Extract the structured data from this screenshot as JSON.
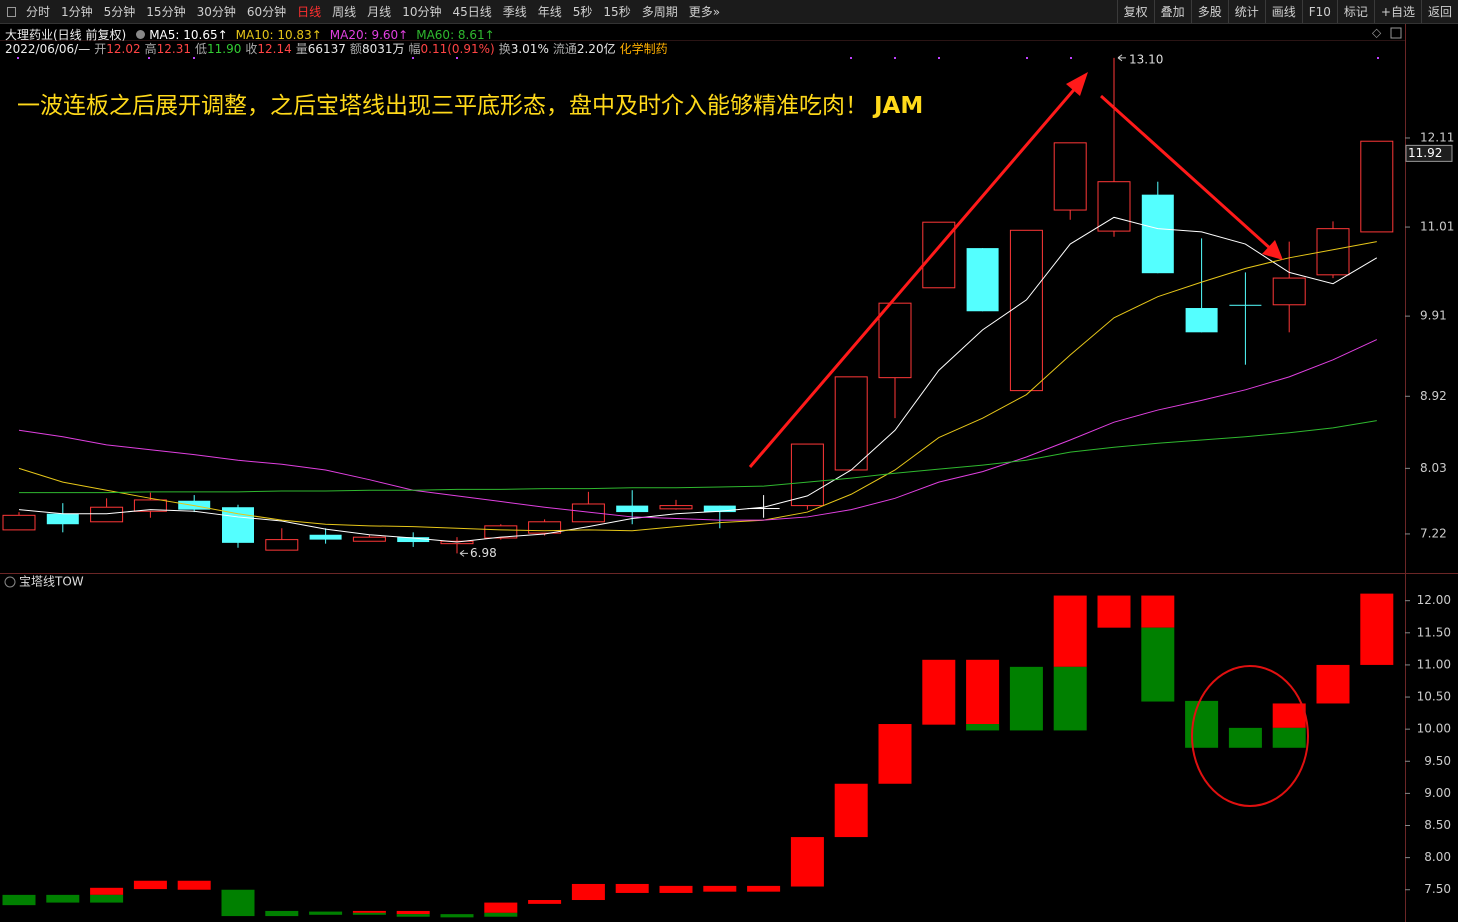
{
  "toolbar": {
    "left": [
      "分时",
      "1分钟",
      "5分钟",
      "15分钟",
      "30分钟",
      "60分钟",
      "日线",
      "周线",
      "月线",
      "10分钟",
      "45日线",
      "季线",
      "年线",
      "5秒",
      "15秒",
      "多周期",
      "更多»"
    ],
    "selected": "日线",
    "right": [
      "复权",
      "叠加",
      "多股",
      "统计",
      "画线",
      "F10",
      "标记",
      "+自选",
      "返回"
    ]
  },
  "info": {
    "stock": "大理药业(日线 前复权)",
    "ma": [
      "MA5: 10.65↑",
      "MA10: 10.83↑",
      "MA20: 9.60↑",
      "MA60: 8.61↑"
    ],
    "date": "2022/06/06/—",
    "quote": [
      {
        "label": "开",
        "value": "12.02",
        "color": "#ff4444"
      },
      {
        "label": "高",
        "value": "12.31",
        "color": "#ff4444"
      },
      {
        "label": "低",
        "value": "11.90",
        "color": "#33cc33"
      },
      {
        "label": "收",
        "value": "12.14",
        "color": "#ff4444"
      },
      {
        "label": "量",
        "value": "66137",
        "color": "#e8e8e8"
      },
      {
        "label": "额",
        "value": "8031万",
        "color": "#e8e8e8"
      },
      {
        "label": "幅",
        "value": "0.11(0.91%)",
        "color": "#ff4444"
      },
      {
        "label": "换",
        "value": "3.01%",
        "color": "#e8e8e8"
      },
      {
        "label": "流通",
        "value": "2.20亿",
        "color": "#e8e8e8"
      }
    ],
    "industry": "化学制药"
  },
  "annotation": {
    "text": "一波连板之后展开调整，之后宝塔线出现三平底形态，盘中及时介入能够精准吃肉！",
    "tag": "JAM"
  },
  "chart_data": [
    {
      "type": "candlestick",
      "ylim": [
        6.75,
        13.32
      ],
      "yticks": [
        7.22,
        8.03,
        8.92,
        9.91,
        11.01,
        12.11
      ],
      "grid": false,
      "up_color": "#ff3838",
      "down_color": "#54ffff",
      "flat_color": "#ffffff",
      "last_price": 11.92,
      "high_label": {
        "value": 13.1,
        "label": "13.10"
      },
      "low_label": 6.98,
      "candles": {
        "open": [
          7.27,
          7.47,
          7.37,
          7.5,
          7.63,
          7.55,
          7.02,
          7.21,
          7.13,
          7.18,
          7.1,
          7.17,
          7.23,
          7.37,
          7.57,
          7.53,
          7.57,
          7.54,
          7.57,
          8.01,
          9.15,
          10.26,
          10.75,
          8.99,
          11.22,
          10.96,
          11.41,
          10.01,
          10.05,
          10.05,
          10.42,
          10.95
        ],
        "high": [
          7.49,
          7.6,
          7.66,
          7.73,
          7.7,
          7.58,
          7.29,
          7.29,
          7.21,
          7.24,
          7.18,
          7.34,
          7.4,
          7.74,
          7.76,
          7.64,
          7.57,
          7.7,
          8.33,
          9.16,
          10.07,
          11.07,
          10.75,
          10.97,
          12.05,
          13.1,
          11.57,
          10.87,
          10.45,
          10.83,
          11.08,
          12.07
        ],
        "low": [
          7.27,
          7.24,
          7.37,
          7.42,
          7.49,
          7.05,
          7.02,
          7.1,
          7.13,
          7.06,
          6.98,
          7.15,
          7.2,
          7.37,
          7.34,
          7.52,
          7.29,
          7.42,
          7.52,
          8.01,
          8.65,
          10.26,
          9.97,
          8.99,
          11.1,
          10.89,
          10.44,
          9.71,
          9.31,
          9.71,
          10.38,
          10.95
        ],
        "close": [
          7.45,
          7.34,
          7.55,
          7.64,
          7.52,
          7.11,
          7.15,
          7.15,
          7.18,
          7.12,
          7.13,
          7.32,
          7.37,
          7.59,
          7.49,
          7.57,
          7.49,
          7.54,
          8.33,
          9.16,
          10.07,
          11.07,
          9.97,
          10.97,
          12.05,
          11.57,
          10.44,
          9.71,
          10.04,
          10.38,
          10.99,
          12.07
        ]
      },
      "series": [
        {
          "color": "#ffffff",
          "values": [
            7.52,
            7.47,
            7.47,
            7.52,
            7.5,
            7.43,
            7.38,
            7.28,
            7.21,
            7.17,
            7.12,
            7.18,
            7.22,
            7.31,
            7.41,
            7.47,
            7.5,
            7.55,
            7.69,
            8.01,
            8.5,
            9.24,
            9.74,
            10.11,
            10.8,
            11.13,
            10.99,
            10.95,
            10.8,
            10.45,
            10.31,
            10.63
          ]
        },
        {
          "color": "#e6c619",
          "values": [
            8.03,
            7.86,
            7.76,
            7.66,
            7.57,
            7.47,
            7.39,
            7.34,
            7.32,
            7.31,
            7.29,
            7.27,
            7.26,
            7.27,
            7.26,
            7.31,
            7.36,
            7.39,
            7.49,
            7.71,
            8.01,
            8.41,
            8.65,
            8.94,
            9.43,
            9.89,
            10.15,
            10.33,
            10.5,
            10.63,
            10.73,
            10.83
          ]
        },
        {
          "color": "#e040e0",
          "values": [
            8.5,
            8.42,
            8.32,
            8.26,
            8.2,
            8.13,
            8.08,
            8.01,
            7.89,
            7.76,
            7.69,
            7.62,
            7.55,
            7.49,
            7.43,
            7.41,
            7.39,
            7.39,
            7.43,
            7.52,
            7.66,
            7.86,
            7.99,
            8.17,
            8.38,
            8.6,
            8.75,
            8.87,
            9.0,
            9.16,
            9.37,
            9.62
          ]
        },
        {
          "color": "#2fb82f",
          "values": [
            7.73,
            7.73,
            7.73,
            7.74,
            7.74,
            7.74,
            7.75,
            7.75,
            7.76,
            7.76,
            7.77,
            7.77,
            7.78,
            7.78,
            7.79,
            7.79,
            7.8,
            7.81,
            7.86,
            7.91,
            7.97,
            8.02,
            8.07,
            8.13,
            8.23,
            8.29,
            8.34,
            8.38,
            8.42,
            8.47,
            8.53,
            8.62
          ]
        }
      ]
    },
    {
      "type": "tower",
      "title": "宝塔线TOW",
      "ylim": [
        7.06,
        12.4
      ],
      "yticks": [
        {
          "value": 7.5,
          "label": "7.50"
        },
        {
          "value": 8,
          "label": "8.00"
        },
        {
          "value": 8.5,
          "label": "8.50"
        },
        {
          "value": 9,
          "label": "9.00"
        },
        {
          "value": 9.5,
          "label": "9.50"
        },
        {
          "value": 10,
          "label": "10.00"
        },
        {
          "value": 10.5,
          "label": "10.50"
        },
        {
          "value": 11,
          "label": "11.00"
        },
        {
          "value": 11.5,
          "label": "11.50"
        },
        {
          "value": 12,
          "label": "12.00"
        }
      ],
      "grid": false,
      "up": {
        "color": "#ff0000",
        "low": [
          null,
          null,
          7.42,
          7.51,
          7.5,
          null,
          null,
          null,
          7.14,
          7.12,
          null,
          7.14,
          7.28,
          7.34,
          7.45,
          7.45,
          7.47,
          7.47,
          7.55,
          8.32,
          9.15,
          10.07,
          10.08,
          null,
          10.97,
          11.58,
          11.58,
          null,
          null,
          10.02,
          10.4,
          11.0
        ],
        "high": [
          null,
          null,
          7.53,
          7.64,
          7.64,
          null,
          null,
          null,
          7.17,
          7.17,
          null,
          7.3,
          7.34,
          7.59,
          7.59,
          7.56,
          7.56,
          7.56,
          8.32,
          9.15,
          10.08,
          11.08,
          11.08,
          null,
          12.08,
          12.08,
          12.08,
          null,
          null,
          10.4,
          11.0,
          12.11
        ]
      },
      "down": {
        "color": "#008000",
        "low": [
          7.26,
          7.3,
          7.3,
          null,
          null,
          7.09,
          7.09,
          7.11,
          7.11,
          7.08,
          7.07,
          7.08,
          null,
          null,
          null,
          null,
          null,
          null,
          null,
          null,
          null,
          null,
          9.98,
          9.98,
          9.98,
          null,
          10.43,
          9.71,
          9.71,
          9.71,
          null,
          null
        ],
        "high": [
          7.42,
          7.42,
          7.42,
          null,
          null,
          7.5,
          7.17,
          7.16,
          7.14,
          7.12,
          7.12,
          7.14,
          null,
          null,
          null,
          null,
          null,
          null,
          null,
          null,
          null,
          null,
          10.08,
          10.97,
          10.97,
          null,
          11.58,
          10.44,
          10.02,
          10.02,
          null,
          null
        ]
      }
    }
  ]
}
